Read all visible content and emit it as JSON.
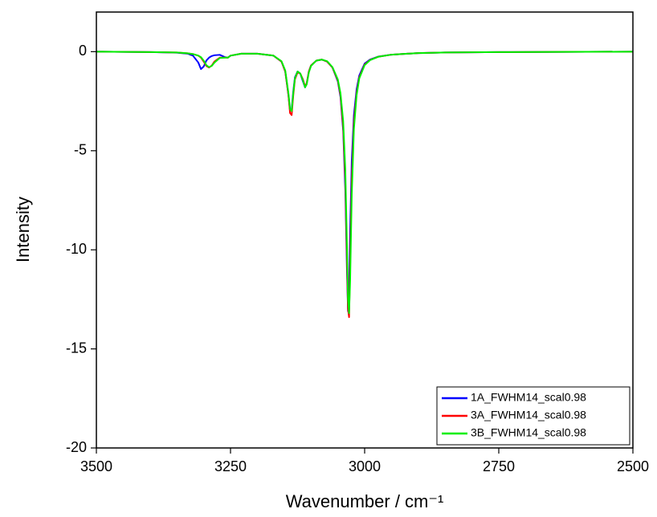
{
  "chart_data": {
    "type": "line",
    "xlabel": "Wavenumber / cm⁻¹",
    "ylabel": "Intensity",
    "xlim": [
      3500,
      2500
    ],
    "ylim": [
      -20,
      2
    ],
    "xticks": [
      3500,
      3250,
      3000,
      2750,
      2500
    ],
    "yticks": [
      0,
      -5,
      -10,
      -15,
      -20
    ],
    "legend": "lower right",
    "x": [
      3500,
      3400,
      3350,
      3330,
      3320,
      3310,
      3305,
      3300,
      3295,
      3290,
      3285,
      3280,
      3270,
      3260,
      3255,
      3250,
      3230,
      3200,
      3170,
      3155,
      3148,
      3142,
      3139,
      3136,
      3133,
      3130,
      3125,
      3120,
      3115,
      3111,
      3108,
      3104,
      3100,
      3090,
      3080,
      3070,
      3060,
      3050,
      3045,
      3040,
      3036,
      3033,
      3031,
      3029,
      3027,
      3024,
      3020,
      3015,
      3010,
      3000,
      2990,
      2975,
      2950,
      2900,
      2850,
      2750,
      2500
    ],
    "series": [
      {
        "name": "1A_FWHM14_scal0.98",
        "color": "#0000ff",
        "values": [
          0,
          -0.02,
          -0.05,
          -0.1,
          -0.2,
          -0.55,
          -0.88,
          -0.75,
          -0.45,
          -0.3,
          -0.22,
          -0.18,
          -0.16,
          -0.28,
          -0.3,
          -0.2,
          -0.1,
          -0.1,
          -0.2,
          -0.5,
          -1.0,
          -2.2,
          -3.0,
          -2.9,
          -2.0,
          -1.3,
          -1.0,
          -1.1,
          -1.5,
          -1.8,
          -1.6,
          -1.0,
          -0.7,
          -0.45,
          -0.4,
          -0.5,
          -0.8,
          -1.5,
          -2.3,
          -4.0,
          -7.0,
          -11.0,
          -13.1,
          -12.0,
          -9.0,
          -5.5,
          -3.2,
          -1.9,
          -1.2,
          -0.6,
          -0.4,
          -0.25,
          -0.15,
          -0.07,
          -0.04,
          -0.02,
          0
        ]
      },
      {
        "name": "3A_FWHM14_scal0.98",
        "color": "#ff0000",
        "values": [
          0,
          -0.02,
          -0.04,
          -0.08,
          -0.12,
          -0.2,
          -0.3,
          -0.5,
          -0.72,
          -0.8,
          -0.7,
          -0.5,
          -0.3,
          -0.3,
          -0.3,
          -0.2,
          -0.1,
          -0.1,
          -0.2,
          -0.5,
          -1.0,
          -2.2,
          -3.1,
          -3.2,
          -2.2,
          -1.4,
          -1.05,
          -1.1,
          -1.4,
          -1.75,
          -1.6,
          -1.0,
          -0.7,
          -0.45,
          -0.4,
          -0.5,
          -0.8,
          -1.45,
          -2.2,
          -3.8,
          -6.5,
          -10.5,
          -13.0,
          -13.4,
          -10.5,
          -6.5,
          -3.6,
          -2.1,
          -1.3,
          -0.65,
          -0.42,
          -0.26,
          -0.15,
          -0.07,
          -0.04,
          -0.02,
          0
        ]
      },
      {
        "name": "3B_FWHM14_scal0.98",
        "color": "#00ee00",
        "values": [
          0,
          -0.02,
          -0.04,
          -0.08,
          -0.12,
          -0.2,
          -0.28,
          -0.45,
          -0.68,
          -0.78,
          -0.72,
          -0.55,
          -0.32,
          -0.3,
          -0.3,
          -0.2,
          -0.1,
          -0.1,
          -0.2,
          -0.48,
          -0.95,
          -2.1,
          -2.9,
          -3.0,
          -2.1,
          -1.35,
          -1.0,
          -1.1,
          -1.45,
          -1.8,
          -1.65,
          -1.05,
          -0.72,
          -0.45,
          -0.4,
          -0.48,
          -0.78,
          -1.4,
          -2.1,
          -3.5,
          -6.0,
          -9.8,
          -12.5,
          -13.2,
          -11.5,
          -7.2,
          -3.9,
          -2.2,
          -1.35,
          -0.68,
          -0.43,
          -0.26,
          -0.15,
          -0.07,
          -0.04,
          -0.02,
          0
        ]
      }
    ]
  }
}
